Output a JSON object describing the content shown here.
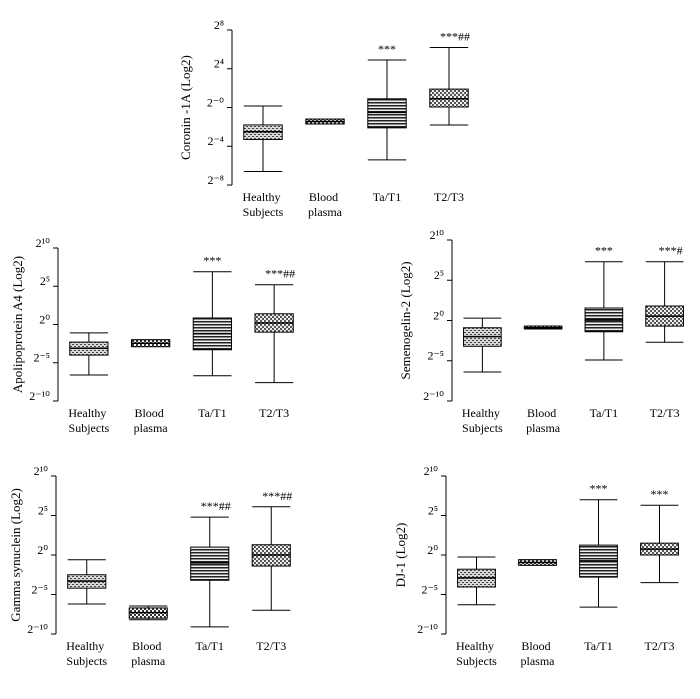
{
  "chart_data": [
    {
      "type": "box",
      "ylabel": "Coronin -1A (Log2)",
      "categories": [
        "Healthy Subjects",
        "Blood plasma",
        "Ta/T1",
        "T2/T3"
      ],
      "ylim": [
        -8,
        8
      ],
      "yticks": [
        {
          "value": -8,
          "label": "2⁻⁸"
        },
        {
          "value": -4,
          "label": "2⁻⁴"
        },
        {
          "value": 0,
          "label": "2⁻⁰"
        },
        {
          "value": 4,
          "label": "2⁴"
        },
        {
          "value": 8,
          "label": "2⁸"
        }
      ],
      "boxes": [
        {
          "min": -6.6,
          "q1": -3.3,
          "median": -2.5,
          "q3": -1.8,
          "max": 0.15
        },
        {
          "min": -1.7,
          "q1": -1.7,
          "median": -1.45,
          "q3": -1.2,
          "max": -1.2
        },
        {
          "min": -5.4,
          "q1": -2.1,
          "median": -0.5,
          "q3": 0.9,
          "max": 4.9
        },
        {
          "min": -1.8,
          "q1": 0.05,
          "median": 0.9,
          "q3": 1.9,
          "max": 6.2
        }
      ],
      "annotations": [
        {
          "x": "Ta/T1",
          "text": "***"
        },
        {
          "x": "T2/T3",
          "text": "***##"
        }
      ]
    },
    {
      "type": "box",
      "ylabel": "Apolipoprotein A4 (Log2)",
      "categories": [
        "Healthy Subjects",
        "Blood plasma",
        "Ta/T1",
        "T2/T3"
      ],
      "ylim": [
        -10,
        10
      ],
      "yticks": [
        {
          "value": -10,
          "label": "2⁻¹⁰"
        },
        {
          "value": -5,
          "label": "2⁻⁵"
        },
        {
          "value": 0,
          "label": "2⁰"
        },
        {
          "value": 5,
          "label": "2⁵"
        },
        {
          "value": 10,
          "label": "2¹⁰"
        }
      ],
      "boxes": [
        {
          "min": -6.6,
          "q1": -4.0,
          "median": -3.1,
          "q3": -2.3,
          "max": -1.1
        },
        {
          "min": -2.9,
          "q1": -2.9,
          "median": -2.45,
          "q3": -2.0,
          "max": -2.0
        },
        {
          "min": -6.7,
          "q1": -3.3,
          "median": -1.2,
          "q3": 0.85,
          "max": 6.9
        },
        {
          "min": -7.6,
          "q1": -1.0,
          "median": 0.2,
          "q3": 1.4,
          "max": 5.2
        }
      ],
      "annotations": [
        {
          "x": "Ta/T1",
          "text": "***"
        },
        {
          "x": "T2/T3",
          "text": "***##"
        }
      ]
    },
    {
      "type": "box",
      "ylabel": "Semenogelin-2 (Log2)",
      "categories": [
        "Healthy Subjects",
        "Blood plasma",
        "Ta/T1",
        "T2/T3"
      ],
      "ylim": [
        -10,
        10
      ],
      "yticks": [
        {
          "value": -10,
          "label": "2⁻¹⁰"
        },
        {
          "value": -5,
          "label": "2⁻⁵"
        },
        {
          "value": 0,
          "label": "2⁰"
        },
        {
          "value": 5,
          "label": "2⁵"
        },
        {
          "value": 10,
          "label": "2¹⁰"
        }
      ],
      "boxes": [
        {
          "min": -6.4,
          "q1": -3.2,
          "median": -2.0,
          "q3": -0.9,
          "max": 0.3
        },
        {
          "min": -1.05,
          "q1": -1.05,
          "median": -0.9,
          "q3": -0.7,
          "max": -0.7
        },
        {
          "min": -4.9,
          "q1": -1.4,
          "median": 0.05,
          "q3": 1.55,
          "max": 7.3
        },
        {
          "min": -2.7,
          "q1": -0.7,
          "median": 0.55,
          "q3": 1.8,
          "max": 7.3
        }
      ],
      "annotations": [
        {
          "x": "Ta/T1",
          "text": "***"
        },
        {
          "x": "T2/T3",
          "text": "***#"
        }
      ]
    },
    {
      "type": "box",
      "ylabel": "Gamma synuclein (Log2)",
      "categories": [
        "Healthy Subjects",
        "Blood plasma",
        "Ta/T1",
        "T2/T3"
      ],
      "ylim": [
        -10,
        10
      ],
      "yticks": [
        {
          "value": -10,
          "label": "2⁻¹⁰"
        },
        {
          "value": -5,
          "label": "2⁻⁵"
        },
        {
          "value": 0,
          "label": "2⁰"
        },
        {
          "value": 5,
          "label": "2⁵"
        },
        {
          "value": 10,
          "label": "2¹⁰"
        }
      ],
      "boxes": [
        {
          "min": -6.2,
          "q1": -4.2,
          "median": -3.3,
          "q3": -2.5,
          "max": -0.6
        },
        {
          "min": -8.2,
          "q1": -8.0,
          "median": -7.3,
          "q3": -6.7,
          "max": -6.45
        },
        {
          "min": -9.1,
          "q1": -3.2,
          "median": -1.0,
          "q3": 1.0,
          "max": 4.8
        },
        {
          "min": -7.0,
          "q1": -1.4,
          "median": 0,
          "q3": 1.3,
          "max": 6.1
        }
      ],
      "annotations": [
        {
          "x": "Ta/T1",
          "text": "***##"
        },
        {
          "x": "T2/T3",
          "text": "***##"
        }
      ]
    },
    {
      "type": "box",
      "ylabel": "DJ-1 (Log2)",
      "categories": [
        "Healthy Subjects",
        "Blood plasma",
        "Ta/T1",
        "T2/T3"
      ],
      "ylim": [
        -10,
        10
      ],
      "yticks": [
        {
          "value": -10,
          "label": "2⁻¹⁰"
        },
        {
          "value": -5,
          "label": "2⁻⁵"
        },
        {
          "value": 0,
          "label": "2⁰"
        },
        {
          "value": 5,
          "label": "2⁵"
        },
        {
          "value": 10,
          "label": "2¹⁰"
        }
      ],
      "boxes": [
        {
          "min": -6.3,
          "q1": -4.05,
          "median": -2.9,
          "q3": -1.8,
          "max": -0.25
        },
        {
          "min": -1.3,
          "q1": -1.3,
          "median": -0.95,
          "q3": -0.6,
          "max": -0.6
        },
        {
          "min": -6.6,
          "q1": -2.8,
          "median": -0.75,
          "q3": 1.25,
          "max": 7.0
        },
        {
          "min": -3.5,
          "q1": 0,
          "median": 0.75,
          "q3": 1.5,
          "max": 6.3
        }
      ],
      "annotations": [
        {
          "x": "Ta/T1",
          "text": "***"
        },
        {
          "x": "T2/T3",
          "text": "***"
        }
      ]
    }
  ]
}
